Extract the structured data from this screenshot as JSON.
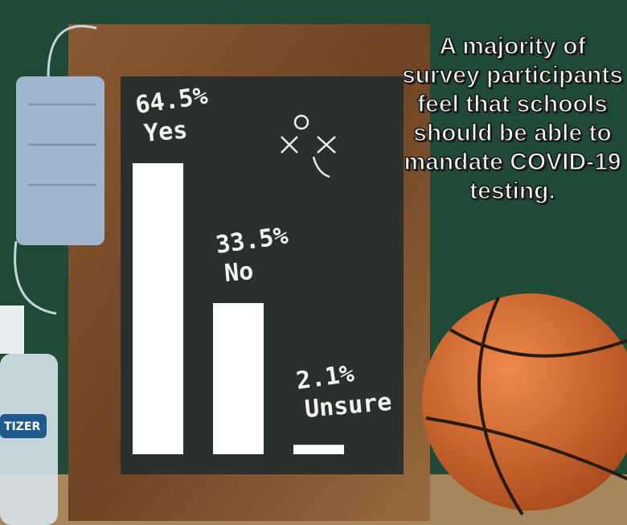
{
  "chart_data": {
    "type": "bar",
    "title": "A majority of survey participants feel that schools should be able to mandate COVID-19 testing.",
    "categories": [
      "Yes",
      "No",
      "Unsure"
    ],
    "values": [
      64.5,
      33.5,
      2.1
    ],
    "value_labels": [
      "64.5%",
      "33.5%",
      "2.1%"
    ],
    "color": "#ffffff",
    "annotations": [
      "TIZER"
    ]
  }
}
